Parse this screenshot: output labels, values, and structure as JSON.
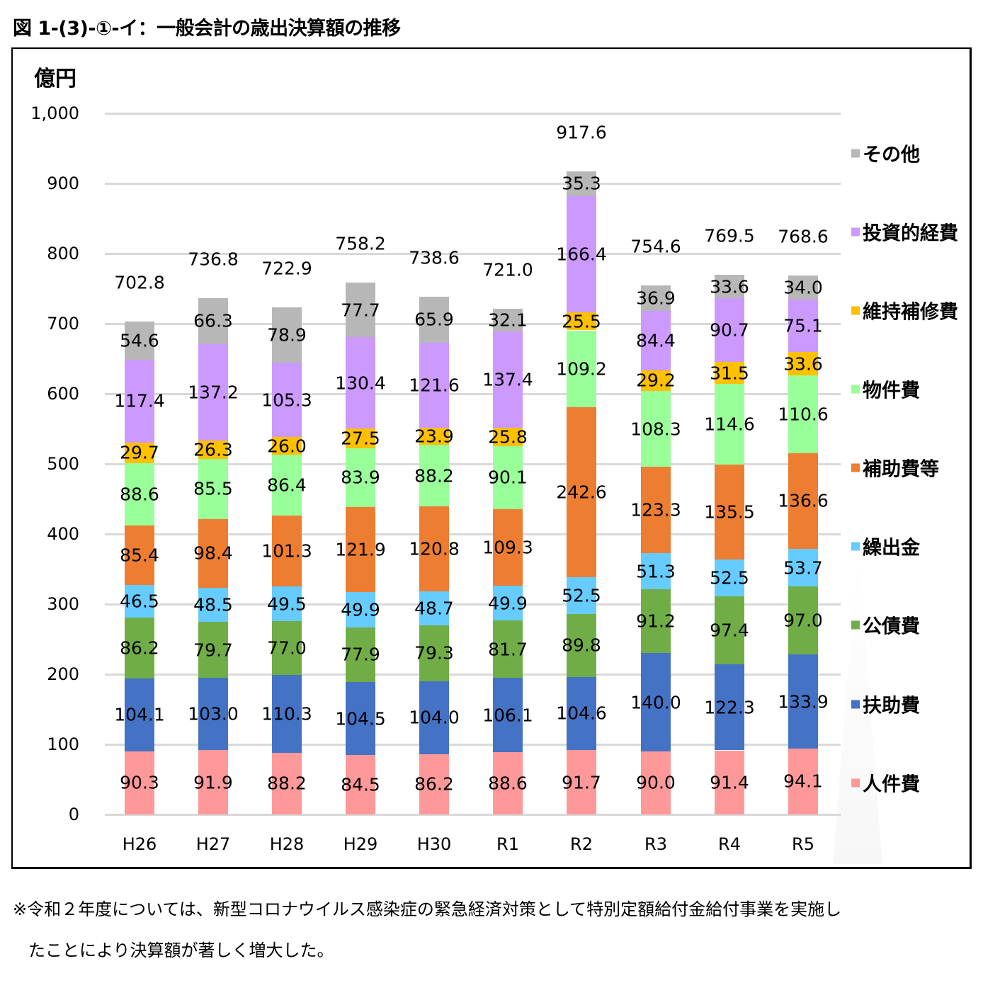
{
  "title": "図 1-(3)-①-イ：一般会計の歳出決算額の推移",
  "unit_label": "億円",
  "footnote": {
    "line1": "※令和２年度については、新型コロナウイルス感染症の緊急経済対策として特別定額給付金給付事業を実施し",
    "line2": "たことにより決算額が著しく増大した。"
  },
  "y_ticks": [
    "0",
    "100",
    "200",
    "300",
    "400",
    "500",
    "600",
    "700",
    "800",
    "900",
    "1,000"
  ],
  "chart_data": {
    "type": "bar",
    "stacked": true,
    "title": "図 1-(3)-①-イ：一般会計の歳出決算額の推移",
    "xlabel": "",
    "ylabel": "億円",
    "ylim": [
      0,
      1000
    ],
    "grid": true,
    "legend_position": "right",
    "categories": [
      "H26",
      "H27",
      "H28",
      "H29",
      "H30",
      "R1",
      "R2",
      "R3",
      "R4",
      "R5"
    ],
    "series": [
      {
        "name": "人件費",
        "color": "#FF9999",
        "values": [
          90.3,
          91.9,
          88.2,
          84.5,
          86.2,
          88.6,
          91.7,
          90.0,
          91.4,
          94.1
        ]
      },
      {
        "name": "扶助費",
        "color": "#4472C4",
        "values": [
          104.1,
          103.0,
          110.3,
          104.5,
          104.0,
          106.1,
          104.6,
          140.0,
          122.3,
          133.9
        ]
      },
      {
        "name": "公債費",
        "color": "#70AD47",
        "values": [
          86.2,
          79.7,
          77.0,
          77.9,
          79.3,
          81.7,
          89.8,
          91.2,
          97.4,
          97.0
        ]
      },
      {
        "name": "繰出金",
        "color": "#66CCFF",
        "values": [
          46.5,
          48.5,
          49.5,
          49.9,
          48.7,
          49.9,
          52.5,
          51.3,
          52.5,
          53.7
        ]
      },
      {
        "name": "補助費等",
        "color": "#ED7D31",
        "values": [
          85.4,
          98.4,
          101.3,
          121.9,
          120.8,
          109.3,
          242.6,
          123.3,
          135.5,
          136.6
        ]
      },
      {
        "name": "物件費",
        "color": "#99FF99",
        "values": [
          88.6,
          85.5,
          86.4,
          83.9,
          88.2,
          90.1,
          109.2,
          108.3,
          114.6,
          110.6
        ]
      },
      {
        "name": "維持補修費",
        "color": "#FFC000",
        "values": [
          29.7,
          26.3,
          26.0,
          27.5,
          23.9,
          25.8,
          25.5,
          29.2,
          31.5,
          33.6
        ]
      },
      {
        "name": "投資的経費",
        "color": "#CC99FF",
        "values": [
          117.4,
          137.2,
          105.3,
          130.4,
          121.6,
          137.4,
          166.4,
          84.4,
          90.7,
          75.1
        ]
      },
      {
        "name": "その他",
        "color": "#B7B7B7",
        "values": [
          54.6,
          66.3,
          78.9,
          77.7,
          65.9,
          32.1,
          35.3,
          36.9,
          33.6,
          34.0
        ]
      }
    ],
    "totals": [
      702.8,
      736.8,
      722.9,
      758.2,
      738.6,
      721.0,
      917.6,
      754.6,
      769.5,
      768.6
    ],
    "totals_labels": [
      "702.8",
      "736.8",
      "722.9",
      "758.2",
      "738.6",
      "721.0",
      "917.6",
      "754.6",
      "769.5",
      "768.6"
    ],
    "legend_order": [
      "その他",
      "投資的経費",
      "維持補修費",
      "物件費",
      "補助費等",
      "繰出金",
      "公債費",
      "扶助費",
      "人件費"
    ]
  }
}
